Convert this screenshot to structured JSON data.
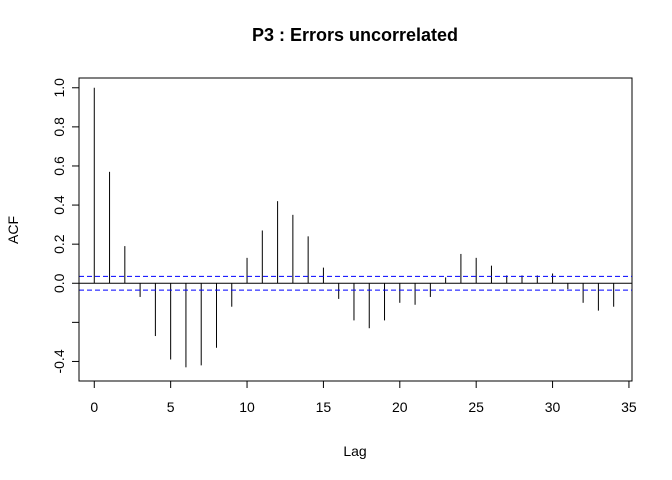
{
  "chart_data": {
    "type": "bar",
    "title": "P3 : Errors uncorrelated",
    "xlabel": "Lag",
    "ylabel": "ACF",
    "xlim": [
      -1,
      35.2
    ],
    "ylim": [
      -0.5,
      1.05
    ],
    "x_ticks": [
      0,
      5,
      10,
      15,
      20,
      25,
      30,
      35
    ],
    "x_tick_labels": [
      "0",
      "5",
      "10",
      "15",
      "20",
      "25",
      "30",
      "35"
    ],
    "y_ticks": [
      -0.4,
      -0.2,
      0.0,
      0.2,
      0.4,
      0.6,
      0.8,
      1.0
    ],
    "y_tick_labels": [
      "-0.4",
      "",
      "0.0",
      "0.2",
      "0.4",
      "0.6",
      "0.8",
      "1.0"
    ],
    "grid": false,
    "confidence_bound": 0.035,
    "colors": {
      "bars": "#000000",
      "zero_line": "#000000",
      "confidence_lines": "#0000ff"
    },
    "lags": [
      0,
      1,
      2,
      3,
      4,
      5,
      6,
      7,
      8,
      9,
      10,
      11,
      12,
      13,
      14,
      15,
      16,
      17,
      18,
      19,
      20,
      21,
      22,
      23,
      24,
      25,
      26,
      27,
      28,
      29,
      30,
      31,
      32,
      33,
      34
    ],
    "values": [
      1.0,
      0.57,
      0.19,
      -0.07,
      -0.27,
      -0.39,
      -0.43,
      -0.42,
      -0.33,
      -0.12,
      0.13,
      0.27,
      0.42,
      0.35,
      0.24,
      0.08,
      -0.08,
      -0.19,
      -0.23,
      -0.19,
      -0.1,
      -0.11,
      -0.07,
      0.03,
      0.15,
      0.13,
      0.09,
      0.04,
      0.04,
      0.04,
      0.05,
      -0.03,
      -0.1,
      -0.14,
      -0.12
    ]
  }
}
